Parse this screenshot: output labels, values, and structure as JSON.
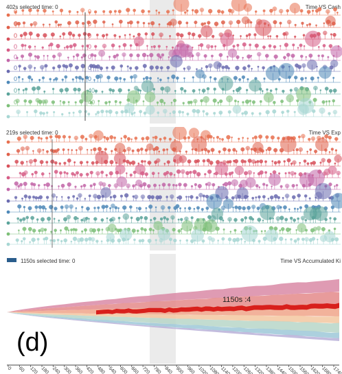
{
  "panels": [
    {
      "selected_label": "402s selected time: 0",
      "title": "Time VS Cash"
    },
    {
      "selected_label": "219s selected time: 0",
      "title": "Time VS Exp"
    },
    {
      "selected_label": "1150s selected time: 0",
      "title": "Time VS Accumulated Ki"
    }
  ],
  "row_labels": [
    "0",
    "0",
    "0",
    "0",
    "0",
    "0",
    "0",
    "40",
    "40"
  ],
  "stream": {
    "annotation": "1150s :4"
  },
  "figure_label": "(d)",
  "x_ticks": [
    "0",
    "60",
    "120",
    "180",
    "240",
    "300",
    "360",
    "420",
    "480",
    "540",
    "600",
    "660",
    "720",
    "780",
    "840",
    "900",
    "960",
    "1020",
    "1080",
    "1140",
    "1200",
    "1260",
    "1320",
    "1380",
    "1440",
    "1500",
    "1560",
    "1620",
    "1680",
    "1740"
  ],
  "row_colors": [
    "#e8704f",
    "#e0604a",
    "#d8505a",
    "#d65c86",
    "#c266a8",
    "#6a6bb0",
    "#4e88b8",
    "#5aa39a",
    "#7dbf78",
    "#a6d6d3"
  ]
}
